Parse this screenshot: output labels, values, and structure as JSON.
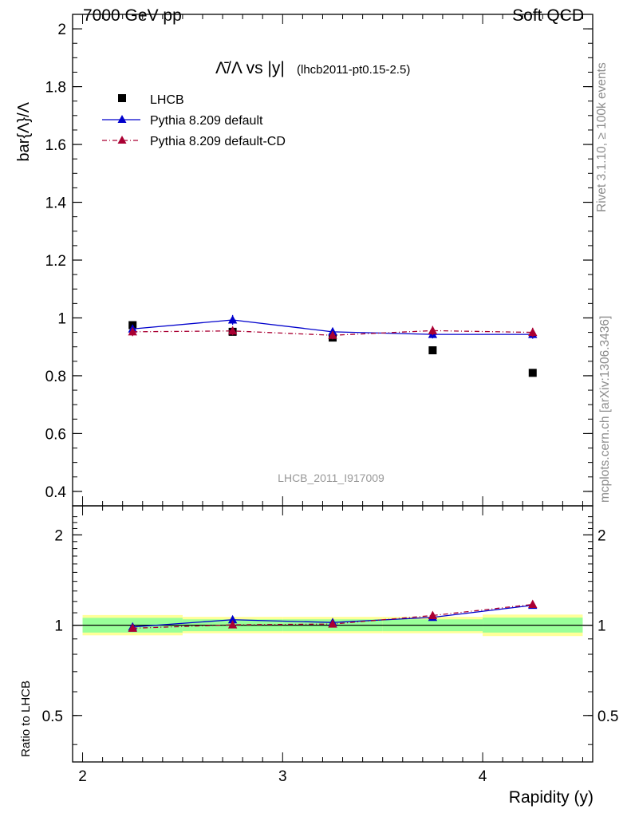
{
  "header": {
    "left": "7000 GeV pp",
    "right": "Soft QCD"
  },
  "side_labels": {
    "rivet": "Rivet 3.1.10, ≥ 100k events",
    "mcplots": "mcplots.cern.ch [arXiv:1306.3436]"
  },
  "watermark": "LHCB_2011_I917009",
  "chart_data": [
    {
      "type": "scatter",
      "title_main": "Λ̄/Λ vs |y|",
      "title_sub": "(lhcb2011-pt0.15-2.5)",
      "ylabel": "bar{Λ}/Λ",
      "xlabel": "Rapidity (y)",
      "xlim": [
        1.95,
        4.55
      ],
      "ylim": [
        0.35,
        2.05
      ],
      "yticks": [
        0.4,
        0.6,
        0.8,
        1,
        1.2,
        1.4,
        1.6,
        1.8,
        2
      ],
      "ytick_labels": [
        "0.4",
        "0.6",
        "0.8",
        "1",
        "1.2",
        "1.4",
        "1.6",
        "1.8",
        "2"
      ],
      "legend_position": "top-left",
      "series": [
        {
          "name": "LHCB",
          "color": "#000000",
          "marker": "square",
          "x": [
            2.25,
            2.75,
            3.25,
            3.75,
            4.25
          ],
          "y": [
            0.975,
            0.952,
            0.932,
            0.888,
            0.81
          ],
          "yerr": [
            0.006,
            0.006,
            0.006,
            0.006,
            0.006
          ]
        },
        {
          "name": "Pythia 8.209 default",
          "color": "#0000cc",
          "marker": "triangle",
          "line": "solid",
          "x": [
            2.25,
            2.75,
            3.25,
            3.75,
            4.25
          ],
          "y": [
            0.962,
            0.993,
            0.952,
            0.943,
            0.943
          ],
          "yerr": [
            0.015,
            0.017,
            0.014,
            0.014,
            0.015
          ]
        },
        {
          "name": "Pythia 8.209 default-CD",
          "color": "#aa0033",
          "marker": "triangle",
          "line": "dashdot",
          "x": [
            2.25,
            2.75,
            3.25,
            3.75,
            4.25
          ],
          "y": [
            0.952,
            0.955,
            0.94,
            0.956,
            0.95
          ],
          "yerr": [
            0.015,
            0.015,
            0.014,
            0.016,
            0.016
          ]
        }
      ]
    },
    {
      "type": "scatter",
      "ylabel": "Ratio to LHCB",
      "xlabel": "Rapidity (y)",
      "xlim": [
        1.95,
        4.55
      ],
      "ylim": [
        0.35,
        2.5
      ],
      "log_y": true,
      "xticks": [
        2,
        3,
        4
      ],
      "xtick_labels": [
        "2",
        "3",
        "4"
      ],
      "yticks": [
        0.5,
        1,
        2
      ],
      "ytick_labels": [
        "0.5",
        "1",
        "2"
      ],
      "bands": [
        {
          "x0": 2.0,
          "x1": 2.5,
          "stat": [
            0.945,
            1.058
          ],
          "total": [
            0.925,
            1.081
          ]
        },
        {
          "x0": 2.5,
          "x1": 3.0,
          "stat": [
            0.955,
            1.046
          ],
          "total": [
            0.94,
            1.066
          ]
        },
        {
          "x0": 3.0,
          "x1": 3.5,
          "stat": [
            0.955,
            1.046
          ],
          "total": [
            0.94,
            1.066
          ]
        },
        {
          "x0": 3.5,
          "x1": 4.0,
          "stat": [
            0.955,
            1.046
          ],
          "total": [
            0.94,
            1.066
          ]
        },
        {
          "x0": 4.0,
          "x1": 4.5,
          "stat": [
            0.945,
            1.06
          ],
          "total": [
            0.92,
            1.085
          ]
        }
      ],
      "band_colors": {
        "stat": "#99ff99",
        "total": "#ffff99"
      },
      "series": [
        {
          "name": "Pythia 8.209 default",
          "color": "#0000cc",
          "line": "solid",
          "x": [
            2.25,
            2.75,
            3.25,
            3.75,
            4.25
          ],
          "y": [
            0.987,
            1.043,
            1.021,
            1.062,
            1.165
          ]
        },
        {
          "name": "Pythia 8.209 default-CD",
          "color": "#aa0033",
          "line": "dashdot",
          "x": [
            2.25,
            2.75,
            3.25,
            3.75,
            4.25
          ],
          "y": [
            0.977,
            1.003,
            1.009,
            1.077,
            1.173
          ]
        }
      ]
    }
  ]
}
